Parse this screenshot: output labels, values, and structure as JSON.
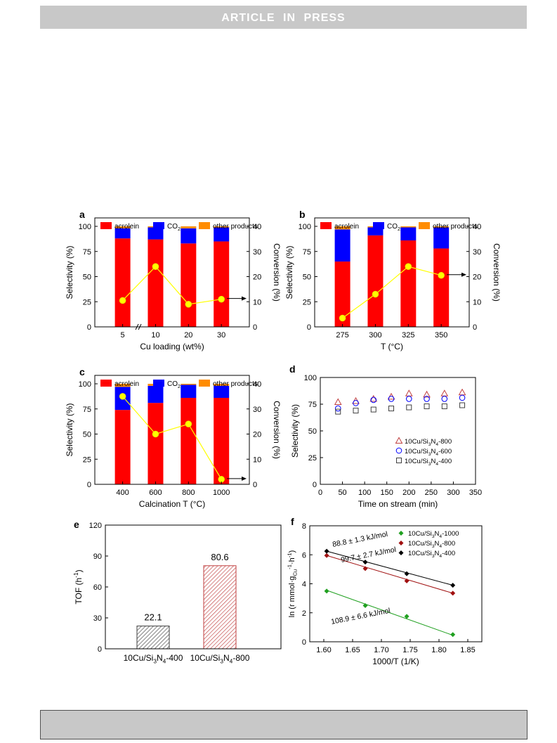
{
  "header": {
    "banner": "ARTICLE  IN  PRESS"
  },
  "colors": {
    "acrolein": "#ff0000",
    "co2": "#0000ff",
    "other": "#ff8c00",
    "conversion": "#ffff00",
    "tof_400": "#404040",
    "tof_800": "#c04040",
    "green": "#20a020",
    "darkred": "#a01010"
  },
  "legend_bar": {
    "acrolein": "acrolein",
    "co2": "CO",
    "co2_sub": "2",
    "other": "other products"
  },
  "chart_data": [
    {
      "id": "a",
      "label": "a",
      "type": "bar",
      "xlabel": "Cu loading (wt%)",
      "ylabel": "Selectivity (%)",
      "y2label": "Conversion (%)",
      "categories": [
        "5",
        "10",
        "20",
        "30"
      ],
      "ylim": [
        0,
        100
      ],
      "yticks": [
        0,
        25,
        50,
        75,
        100
      ],
      "y2lim": [
        0,
        40
      ],
      "y2ticks": [
        0,
        10,
        20,
        30,
        40
      ],
      "axis_break": true,
      "series": [
        {
          "name": "acrolein",
          "values": [
            88,
            87,
            83,
            85
          ]
        },
        {
          "name": "CO2",
          "values": [
            10,
            12,
            15,
            14
          ]
        },
        {
          "name": "other products",
          "values": [
            2,
            1,
            2,
            1
          ]
        }
      ],
      "conversion": [
        10.5,
        24.0,
        9.0,
        11.0
      ]
    },
    {
      "id": "b",
      "label": "b",
      "type": "bar",
      "xlabel": "T (°C)",
      "ylabel": "Selectivity (%)",
      "y2label": "Conversion (%)",
      "categories": [
        "275",
        "300",
        "325",
        "350"
      ],
      "ylim": [
        0,
        100
      ],
      "yticks": [
        0,
        25,
        50,
        75,
        100
      ],
      "y2lim": [
        0,
        40
      ],
      "y2ticks": [
        0,
        10,
        20,
        30,
        40
      ],
      "series": [
        {
          "name": "acrolein",
          "values": [
            65,
            91,
            86,
            78
          ]
        },
        {
          "name": "CO2",
          "values": [
            32,
            8,
            13,
            21
          ]
        },
        {
          "name": "other products",
          "values": [
            3,
            1,
            1,
            1
          ]
        }
      ],
      "conversion": [
        3.5,
        13.0,
        24.0,
        20.5
      ]
    },
    {
      "id": "c",
      "label": "c",
      "type": "bar",
      "xlabel": "Calcination T (°C)",
      "ylabel": "Selectivity (%)",
      "y2label": "Conversion (%)",
      "categories": [
        "400",
        "600",
        "800",
        "1000"
      ],
      "ylim": [
        0,
        100
      ],
      "yticks": [
        0,
        25,
        50,
        75,
        100
      ],
      "y2lim": [
        0,
        40
      ],
      "y2ticks": [
        0,
        10,
        20,
        30,
        40
      ],
      "series": [
        {
          "name": "acrolein",
          "values": [
            74,
            81,
            86,
            86
          ]
        },
        {
          "name": "CO2",
          "values": [
            23,
            17,
            13,
            12
          ]
        },
        {
          "name": "other products",
          "values": [
            3,
            2,
            1,
            2
          ]
        }
      ],
      "conversion": [
        35.0,
        20.0,
        24.0,
        2.0
      ]
    },
    {
      "id": "d",
      "label": "d",
      "type": "scatter",
      "xlabel": "Time on stream (min)",
      "ylabel": "Selectivity (%)",
      "xlim": [
        0,
        350
      ],
      "xticks": [
        0,
        50,
        100,
        150,
        200,
        250,
        300,
        350
      ],
      "ylim": [
        0,
        100
      ],
      "yticks": [
        0,
        25,
        50,
        75,
        100
      ],
      "series": [
        {
          "name": "10Cu/Si3N4-800",
          "prefix": "10Cu/Si",
          "s1": "3",
          "mid": "N",
          "s2": "4",
          "suffix": "-800",
          "marker": "triangle",
          "color": "#c04040",
          "x": [
            40,
            80,
            120,
            160,
            200,
            240,
            280,
            320
          ],
          "y": [
            77,
            78,
            80,
            82,
            85,
            84,
            85,
            86
          ]
        },
        {
          "name": "10Cu/Si3N4-600",
          "prefix": "10Cu/Si",
          "s1": "3",
          "mid": "N",
          "s2": "4",
          "suffix": "-600",
          "marker": "circle",
          "color": "#0000ff",
          "x": [
            40,
            80,
            120,
            160,
            200,
            240,
            280,
            320
          ],
          "y": [
            71,
            76,
            79,
            80,
            80,
            80,
            80,
            81
          ]
        },
        {
          "name": "10Cu/Si3N4-400",
          "prefix": "10Cu/Si",
          "s1": "3",
          "mid": "N",
          "s2": "4",
          "suffix": "-400",
          "marker": "square",
          "color": "#404040",
          "x": [
            40,
            80,
            120,
            160,
            200,
            240,
            280,
            320
          ],
          "y": [
            68,
            69,
            70,
            71,
            72,
            73,
            73,
            74
          ]
        }
      ]
    },
    {
      "id": "e",
      "label": "e",
      "type": "bar",
      "ylabel": "TOF (h",
      "ylabel_sup": "-1",
      "ylabel_end": ")",
      "ylim": [
        0,
        120
      ],
      "yticks": [
        0,
        30,
        60,
        90,
        120
      ],
      "categories": [
        {
          "prefix": "10Cu/Si",
          "s1": "3",
          "mid": "N",
          "s2": "4",
          "suffix": "-400"
        },
        {
          "prefix": "10Cu/Si",
          "s1": "3",
          "mid": "N",
          "s2": "4",
          "suffix": "-800"
        }
      ],
      "values": [
        22.1,
        80.6
      ],
      "data_labels": [
        "22.1",
        "80.6"
      ]
    },
    {
      "id": "f",
      "label": "f",
      "type": "scatter",
      "xlabel": "1000/T (1/K)",
      "ylabel": "ln (r mmol·g",
      "ylabel_sub": "Cu",
      "ylabel_sup": "-1",
      "ylabel_end": "·h",
      "xlim": [
        1.6,
        1.85
      ],
      "xticks": [
        1.6,
        1.65,
        1.7,
        1.75,
        1.8,
        1.85
      ],
      "xticklabels": [
        "1.60",
        "1.65",
        "1.70",
        "1.75",
        "1.80",
        "1.85"
      ],
      "ylim": [
        0,
        8
      ],
      "yticks": [
        0,
        2,
        4,
        6,
        8
      ],
      "series": [
        {
          "name": "10Cu/Si3N4-1000",
          "prefix": "10Cu/Si",
          "s1": "3",
          "mid": "N",
          "s2": "4",
          "suffix": "-1000",
          "color": "#20a020",
          "x": [
            1.605,
            1.672,
            1.744,
            1.824
          ],
          "y": [
            3.5,
            2.5,
            1.75,
            0.5
          ],
          "fit": [
            [
              1.605,
              3.55
            ],
            [
              1.824,
              0.45
            ]
          ],
          "annotation": "108.9 ± 6.6 kJ/mol"
        },
        {
          "name": "10Cu/Si3N4-800",
          "prefix": "10Cu/Si",
          "s1": "3",
          "mid": "N",
          "s2": "4",
          "suffix": "-800",
          "color": "#a01010",
          "x": [
            1.605,
            1.672,
            1.744,
            1.824
          ],
          "y": [
            5.95,
            5.05,
            4.2,
            3.35
          ],
          "fit": [
            [
              1.605,
              5.95
            ],
            [
              1.824,
              3.35
            ]
          ],
          "annotation": "99.7 ± 2.7 kJ/mol"
        },
        {
          "name": "10Cu/Si3N4-400",
          "prefix": "10Cu/Si",
          "s1": "3",
          "mid": "N",
          "s2": "4",
          "suffix": "-400",
          "color": "#000000",
          "x": [
            1.605,
            1.672,
            1.744,
            1.824
          ],
          "y": [
            6.25,
            5.5,
            4.7,
            3.9
          ],
          "fit": [
            [
              1.605,
              6.25
            ],
            [
              1.824,
              3.9
            ]
          ],
          "annotation": "88.8 ± 1.3 kJ/mol"
        }
      ]
    }
  ]
}
